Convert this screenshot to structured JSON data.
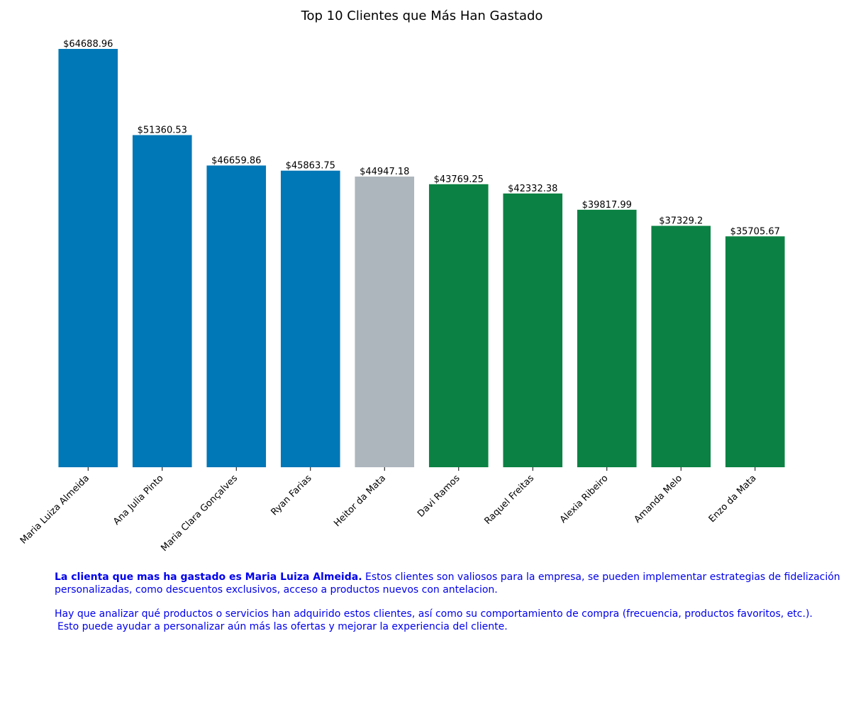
{
  "chart_data": {
    "type": "bar",
    "title": "Top 10 Clientes que Más Han Gastado",
    "xlabel": "",
    "ylabel": "",
    "categories": [
      "Maria Luiza Almeida",
      "Ana Julia Pinto",
      "Maria Clara Gonçalves",
      "Ryan Farias",
      "Heitor da Mata",
      "Davi Ramos",
      "Raquel Freitas",
      "Alexia Ribeiro",
      "Amanda Melo",
      "Enzo da Mata"
    ],
    "values": [
      64688.96,
      51360.53,
      46659.86,
      45863.75,
      44947.18,
      43769.25,
      42332.38,
      39817.99,
      37329.2,
      35705.67
    ],
    "value_labels": [
      "$64688.96",
      "$51360.53",
      "$46659.86",
      "$45863.75",
      "$44947.18",
      "$43769.25",
      "$42332.38",
      "$39817.99",
      "$37329.2",
      "$35705.67"
    ],
    "bar_colors": [
      "#0077b6",
      "#0077b6",
      "#0077b6",
      "#0077b6",
      "#adb5bd",
      "#0b8243",
      "#0b8243",
      "#0b8243",
      "#0b8243",
      "#0b8243"
    ],
    "ylim": [
      0,
      64688.96
    ],
    "grid": false,
    "legend": "none"
  },
  "notes": {
    "line1_bold": "La clienta que mas ha gastado es Maria Luiza Almeida.",
    "line1_rest": "Estos clientes son valiosos para la empresa, se pueden implementar estrategias de fidelización",
    "line2": "personalizadas, como descuentos exclusivos, acceso a productos nuevos con antelacion.",
    "line3": "Hay que analizar qué productos o servicios han adquirido estos clientes, así como su comportamiento de compra (frecuencia, productos favoritos, etc.).",
    "line4": "Esto puede ayudar a personalizar aún más las ofertas y mejorar la experiencia del cliente."
  },
  "colors": {
    "notes_text": "#0000ee"
  }
}
